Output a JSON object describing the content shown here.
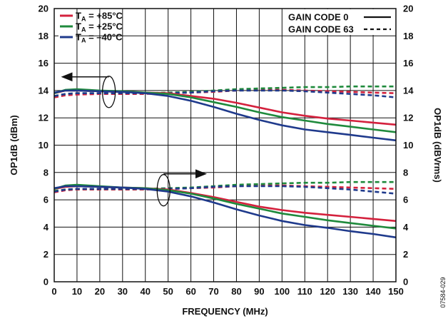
{
  "chart_data": {
    "type": "line",
    "title": "",
    "xlabel": "FREQUENCY (MHz)",
    "ylabel_left": "OP1dB (dBm)",
    "ylabel_right": "OP1dB (dBVrms)",
    "xlim": [
      0,
      150
    ],
    "ylim_left": [
      0,
      20
    ],
    "ylim_right": [
      0,
      20
    ],
    "x_ticks": [
      0,
      10,
      20,
      30,
      40,
      50,
      60,
      70,
      80,
      90,
      100,
      110,
      120,
      130,
      140,
      150
    ],
    "y_ticks": [
      0,
      2,
      4,
      6,
      8,
      10,
      12,
      14,
      16,
      18,
      20
    ],
    "grid": true,
    "figure_id": "07584-029",
    "legend_temperature": [
      {
        "label": "T",
        "sub": "A",
        "suffix": " = +85°C",
        "color": "#d4213d"
      },
      {
        "label": "T",
        "sub": "A",
        "suffix": " = +25°C",
        "color": "#1f8a3c"
      },
      {
        "label": "T",
        "sub": "A",
        "suffix": " = –40°C",
        "color": "#1f3a8c"
      }
    ],
    "legend_gain": [
      {
        "label": "GAIN CODE 0",
        "style": "solid"
      },
      {
        "label": "GAIN CODE 63",
        "style": "dashed"
      }
    ],
    "colors": {
      "t85": "#d4213d",
      "t25": "#1f8a3c",
      "tm40": "#1f3a8c"
    },
    "x": [
      0,
      5,
      10,
      20,
      30,
      40,
      50,
      60,
      70,
      80,
      90,
      100,
      110,
      120,
      130,
      140,
      150
    ],
    "series": [
      {
        "group": "upper",
        "temp": "t85",
        "gain": "GAIN CODE 0",
        "values": [
          13.8,
          14.0,
          14.0,
          13.95,
          13.9,
          13.85,
          13.8,
          13.6,
          13.4,
          13.1,
          12.75,
          12.4,
          12.15,
          11.95,
          11.8,
          11.65,
          11.5
        ]
      },
      {
        "group": "upper",
        "temp": "t25",
        "gain": "GAIN CODE 0",
        "values": [
          13.8,
          14.05,
          14.1,
          14.0,
          13.95,
          13.85,
          13.75,
          13.5,
          13.15,
          12.8,
          12.4,
          12.05,
          11.8,
          11.55,
          11.35,
          11.15,
          10.95
        ]
      },
      {
        "group": "upper",
        "temp": "tm40",
        "gain": "GAIN CODE 0",
        "values": [
          13.85,
          14.0,
          14.0,
          13.95,
          13.9,
          13.8,
          13.6,
          13.25,
          12.8,
          12.3,
          11.85,
          11.45,
          11.15,
          10.95,
          10.75,
          10.55,
          10.35
        ]
      },
      {
        "group": "upper",
        "temp": "t85",
        "gain": "GAIN CODE 63",
        "values": [
          13.5,
          13.65,
          13.7,
          13.75,
          13.75,
          13.75,
          13.8,
          13.85,
          13.9,
          14.0,
          14.05,
          14.05,
          14.0,
          13.95,
          13.9,
          13.85,
          13.8
        ]
      },
      {
        "group": "upper",
        "temp": "t25",
        "gain": "GAIN CODE 63",
        "values": [
          13.6,
          13.75,
          13.8,
          13.8,
          13.8,
          13.8,
          13.85,
          13.9,
          14.0,
          14.1,
          14.15,
          14.2,
          14.25,
          14.25,
          14.3,
          14.3,
          14.3
        ]
      },
      {
        "group": "upper",
        "temp": "tm40",
        "gain": "GAIN CODE 63",
        "values": [
          13.6,
          13.75,
          13.8,
          13.8,
          13.8,
          13.8,
          13.8,
          13.85,
          13.95,
          14.0,
          14.0,
          14.0,
          13.95,
          13.85,
          13.75,
          13.65,
          13.5
        ]
      },
      {
        "group": "lower",
        "temp": "t85",
        "gain": "GAIN CODE 0",
        "values": [
          6.8,
          6.95,
          7.0,
          6.95,
          6.9,
          6.85,
          6.75,
          6.5,
          6.2,
          5.85,
          5.5,
          5.25,
          5.05,
          4.9,
          4.75,
          4.6,
          4.45
        ]
      },
      {
        "group": "lower",
        "temp": "t25",
        "gain": "GAIN CODE 0",
        "values": [
          6.8,
          7.05,
          7.1,
          7.0,
          6.9,
          6.85,
          6.7,
          6.45,
          6.1,
          5.7,
          5.35,
          5.0,
          4.75,
          4.5,
          4.3,
          4.1,
          3.9
        ]
      },
      {
        "group": "lower",
        "temp": "tm40",
        "gain": "GAIN CODE 0",
        "values": [
          6.85,
          7.0,
          7.0,
          6.95,
          6.9,
          6.8,
          6.6,
          6.25,
          5.8,
          5.3,
          4.85,
          4.45,
          4.15,
          3.95,
          3.7,
          3.5,
          3.25
        ]
      },
      {
        "group": "lower",
        "temp": "t85",
        "gain": "GAIN CODE 63",
        "values": [
          6.55,
          6.7,
          6.75,
          6.75,
          6.75,
          6.75,
          6.8,
          6.85,
          6.9,
          7.0,
          7.05,
          7.05,
          7.0,
          6.95,
          6.9,
          6.85,
          6.8
        ]
      },
      {
        "group": "lower",
        "temp": "t25",
        "gain": "GAIN CODE 63",
        "values": [
          6.65,
          6.75,
          6.8,
          6.8,
          6.8,
          6.8,
          6.85,
          6.9,
          7.0,
          7.1,
          7.15,
          7.2,
          7.25,
          7.25,
          7.3,
          7.3,
          7.3
        ]
      },
      {
        "group": "lower",
        "temp": "tm40",
        "gain": "GAIN CODE 63",
        "values": [
          6.6,
          6.75,
          6.8,
          6.8,
          6.8,
          6.8,
          6.8,
          6.85,
          6.95,
          7.0,
          7.0,
          7.0,
          6.95,
          6.85,
          6.75,
          6.6,
          6.45
        ]
      }
    ]
  }
}
